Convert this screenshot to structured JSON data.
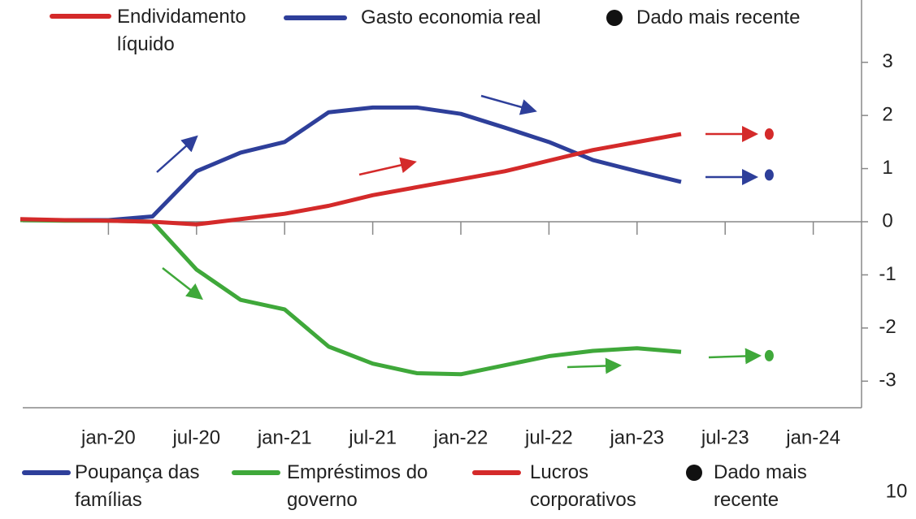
{
  "chart_data": {
    "type": "line",
    "categories": [
      null,
      null,
      "jan-20",
      null,
      "jul-20",
      null,
      "jan-21",
      null,
      "jul-21",
      null,
      "jan-22",
      null,
      "jul-22",
      null,
      "jan-23",
      null,
      "jul-23",
      null,
      "jan-24"
    ],
    "series": [
      {
        "name": "Poupança das famílias",
        "color": "#2e3f9a",
        "values": [
          0.03,
          0.03,
          0.03,
          0.1,
          0.95,
          1.3,
          1.5,
          2.06,
          2.15,
          2.15,
          2.03,
          1.77,
          1.5,
          1.16,
          0.95,
          0.75,
          null,
          null,
          null
        ],
        "latest": 0.88
      },
      {
        "name": "Empréstimos do governo",
        "color": "#3fa83a",
        "values": [
          0.03,
          0.02,
          0.02,
          0,
          -0.9,
          -1.47,
          -1.65,
          -2.35,
          -2.67,
          -2.85,
          -2.87,
          -2.7,
          -2.53,
          -2.43,
          -2.38,
          -2.45,
          null,
          null,
          null
        ],
        "latest": -2.52
      },
      {
        "name": "Lucros corporativos",
        "color": "#d42a2a",
        "values": [
          0.05,
          0.03,
          0.02,
          0,
          -0.05,
          0.05,
          0.15,
          0.3,
          0.5,
          0.65,
          0.8,
          0.95,
          1.15,
          1.35,
          1.5,
          1.65,
          null,
          null,
          null
        ],
        "latest": 1.65
      }
    ],
    "latest_index": 17,
    "latest_name": "Dado mais recente",
    "latest_color": "#111111",
    "top_legend": [
      {
        "name": "Endividamento líquido",
        "color": "#d42a2a"
      },
      {
        "name": "Gasto economia real",
        "color": "#2e3f9a"
      }
    ],
    "ylim": [
      -3.5,
      3.5
    ],
    "yticks": [
      -3,
      -2,
      -1,
      0,
      1,
      2,
      3
    ],
    "page_number": "10"
  }
}
